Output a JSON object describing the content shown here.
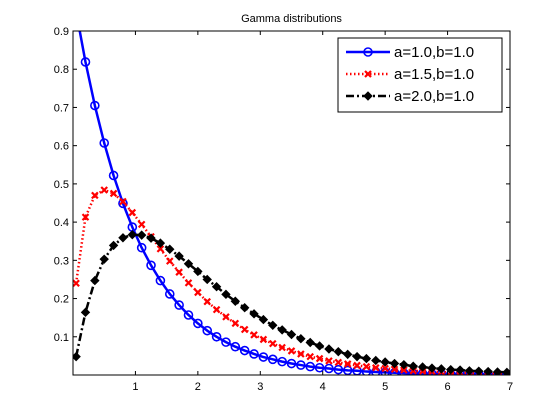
{
  "chart_data": {
    "type": "line",
    "title": "Gamma distributions",
    "xlabel": "",
    "ylabel": "",
    "xlim": [
      0,
      7
    ],
    "ylim": [
      0,
      0.9
    ],
    "xticks": [
      1,
      2,
      3,
      4,
      5,
      6,
      7
    ],
    "yticks": [
      0.1,
      0.2,
      0.3,
      0.4,
      0.5,
      0.6,
      0.7,
      0.8,
      0.9
    ],
    "xtick_labels": [
      "1",
      "2",
      "3",
      "4",
      "5",
      "6",
      "7"
    ],
    "ytick_labels": [
      "0.1",
      "0.2",
      "0.3",
      "0.4",
      "0.5",
      "0.6",
      "0.7",
      "0.8",
      "0.9"
    ],
    "grid": false,
    "legend_position": "top-right",
    "x": [
      0.05,
      0.2,
      0.35,
      0.5,
      0.65,
      0.8,
      0.95,
      1.1,
      1.25,
      1.4,
      1.55,
      1.7,
      1.85,
      2.0,
      2.15,
      2.3,
      2.45,
      2.6,
      2.75,
      2.9,
      3.05,
      3.2,
      3.35,
      3.5,
      3.65,
      3.8,
      3.95,
      4.1,
      4.25,
      4.4,
      4.55,
      4.7,
      4.85,
      5.0,
      5.15,
      5.3,
      5.45,
      5.6,
      5.75,
      5.9,
      6.05,
      6.2,
      6.35,
      6.5,
      6.65,
      6.8,
      6.95
    ],
    "series": [
      {
        "name": "a=1.0,b=1.0",
        "color": "#0000ff",
        "line_style": "solid",
        "marker": "circle",
        "values": [
          0.951,
          0.819,
          0.705,
          0.607,
          0.522,
          0.449,
          0.387,
          0.333,
          0.287,
          0.247,
          0.212,
          0.183,
          0.157,
          0.135,
          0.116,
          0.1,
          0.086,
          0.074,
          0.064,
          0.055,
          0.047,
          0.041,
          0.035,
          0.03,
          0.026,
          0.022,
          0.019,
          0.017,
          0.014,
          0.012,
          0.011,
          0.009,
          0.008,
          0.007,
          0.006,
          0.005,
          0.004,
          0.004,
          0.003,
          0.003,
          0.002,
          0.002,
          0.002,
          0.002,
          0.001,
          0.001,
          0.001
        ]
      },
      {
        "name": "a=1.5,b=1.0",
        "color": "#ff0000",
        "line_style": "dotted",
        "marker": "x",
        "values": [
          0.24,
          0.413,
          0.47,
          0.484,
          0.475,
          0.454,
          0.425,
          0.394,
          0.362,
          0.33,
          0.298,
          0.269,
          0.241,
          0.216,
          0.192,
          0.171,
          0.152,
          0.135,
          0.119,
          0.105,
          0.093,
          0.082,
          0.072,
          0.063,
          0.055,
          0.048,
          0.043,
          0.037,
          0.033,
          0.029,
          0.025,
          0.022,
          0.019,
          0.017,
          0.015,
          0.013,
          0.011,
          0.01,
          0.009,
          0.008,
          0.007,
          0.006,
          0.005,
          0.004,
          0.004,
          0.003,
          0.003
        ]
      },
      {
        "name": "a=2.0,b=1.0",
        "color": "#000000",
        "line_style": "dashdot",
        "marker": "diamond",
        "values": [
          0.048,
          0.164,
          0.247,
          0.303,
          0.339,
          0.359,
          0.367,
          0.366,
          0.358,
          0.345,
          0.329,
          0.311,
          0.291,
          0.271,
          0.25,
          0.231,
          0.211,
          0.193,
          0.176,
          0.16,
          0.145,
          0.13,
          0.118,
          0.106,
          0.095,
          0.085,
          0.076,
          0.068,
          0.061,
          0.054,
          0.048,
          0.043,
          0.038,
          0.034,
          0.03,
          0.027,
          0.023,
          0.021,
          0.018,
          0.016,
          0.014,
          0.013,
          0.011,
          0.01,
          0.009,
          0.008,
          0.007
        ]
      }
    ]
  }
}
